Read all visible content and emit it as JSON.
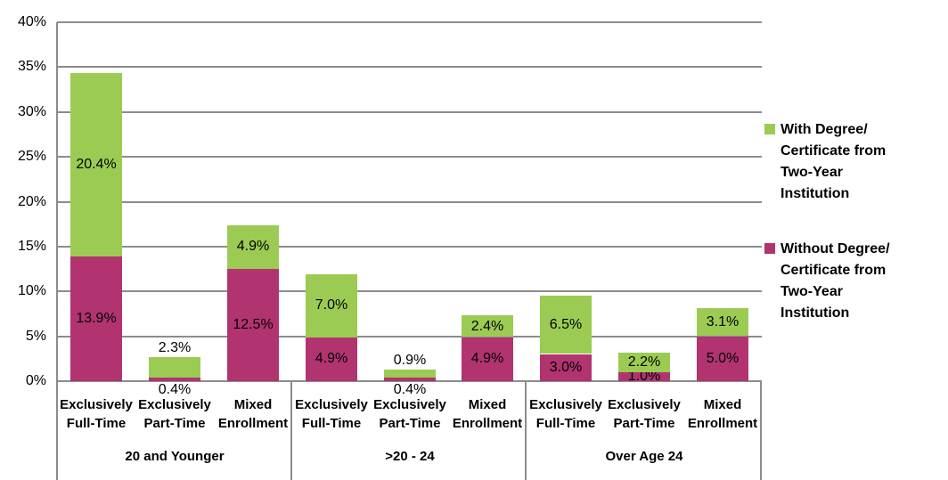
{
  "chart_data": {
    "type": "bar",
    "stacked": true,
    "title": "",
    "xlabel": "",
    "ylabel": "",
    "ylim": [
      0,
      40
    ],
    "ytick_step": 5,
    "ytick_labels": [
      "0%",
      "5%",
      "10%",
      "15%",
      "20%",
      "25%",
      "30%",
      "35%",
      "40%"
    ],
    "grid": true,
    "legend_position": "right",
    "colors": {
      "with_degree": "#9CCB53",
      "without_degree": "#B13470",
      "gridline": "#8C8C8C",
      "text": "#000000",
      "background": "#FFFFFF"
    },
    "series": [
      {
        "key": "with",
        "name_lines": [
          "With Degree/",
          "Certificate from",
          "Two-Year",
          "Institution"
        ],
        "color": "#9CCB53"
      },
      {
        "key": "without",
        "name_lines": [
          "Without Degree/",
          "Certificate from",
          "Two-Year",
          "Institution"
        ],
        "color": "#B13470"
      }
    ],
    "groups": [
      {
        "label": "20 and Younger",
        "bars": [
          {
            "label_lines": [
              "Exclusively",
              "Full-Time"
            ],
            "segments": [
              {
                "series": "without",
                "value": 13.9,
                "label": "13.9%",
                "label_pos": "center"
              },
              {
                "series": "with",
                "value": 20.4,
                "label": "20.4%",
                "label_pos": "center"
              }
            ]
          },
          {
            "label_lines": [
              "Exclusively",
              "Part-Time"
            ],
            "segments": [
              {
                "series": "without",
                "value": 0.4,
                "label": "0.4%",
                "label_pos": "below"
              },
              {
                "series": "with",
                "value": 2.3,
                "label": "2.3%",
                "label_pos": "above"
              }
            ]
          },
          {
            "label_lines": [
              "Mixed",
              "Enrollment"
            ],
            "segments": [
              {
                "series": "without",
                "value": 12.5,
                "label": "12.5%",
                "label_pos": "center"
              },
              {
                "series": "with",
                "value": 4.9,
                "label": "4.9%",
                "label_pos": "center"
              }
            ]
          }
        ]
      },
      {
        "label": ">20 - 24",
        "bars": [
          {
            "label_lines": [
              "Exclusively",
              "Full-Time"
            ],
            "segments": [
              {
                "series": "without",
                "value": 4.9,
                "label": "4.9%",
                "label_pos": "center"
              },
              {
                "series": "with",
                "value": 7.0,
                "label": "7.0%",
                "label_pos": "center"
              }
            ]
          },
          {
            "label_lines": [
              "Exclusively",
              "Part-Time"
            ],
            "segments": [
              {
                "series": "without",
                "value": 0.4,
                "label": "0.4%",
                "label_pos": "below"
              },
              {
                "series": "with",
                "value": 0.9,
                "label": "0.9%",
                "label_pos": "above"
              }
            ]
          },
          {
            "label_lines": [
              "Mixed",
              "Enrollment"
            ],
            "segments": [
              {
                "series": "without",
                "value": 4.9,
                "label": "4.9%",
                "label_pos": "center"
              },
              {
                "series": "with",
                "value": 2.4,
                "label": "2.4%",
                "label_pos": "center"
              }
            ]
          }
        ]
      },
      {
        "label": "Over Age 24",
        "bars": [
          {
            "label_lines": [
              "Exclusively",
              "Full-Time"
            ],
            "segments": [
              {
                "series": "without",
                "value": 3.0,
                "label": "3.0%",
                "label_pos": "center"
              },
              {
                "series": "with",
                "value": 6.5,
                "label": "6.5%",
                "label_pos": "center"
              }
            ]
          },
          {
            "label_lines": [
              "Exclusively",
              "Part-Time"
            ],
            "segments": [
              {
                "series": "without",
                "value": 1.0,
                "label": "1.0%",
                "label_pos": "center"
              },
              {
                "series": "with",
                "value": 2.2,
                "label": "2.2%",
                "label_pos": "center"
              }
            ]
          },
          {
            "label_lines": [
              "Mixed",
              "Enrollment"
            ],
            "segments": [
              {
                "series": "without",
                "value": 5.0,
                "label": "5.0%",
                "label_pos": "center"
              },
              {
                "series": "with",
                "value": 3.1,
                "label": "3.1%",
                "label_pos": "center"
              }
            ]
          }
        ]
      }
    ]
  }
}
